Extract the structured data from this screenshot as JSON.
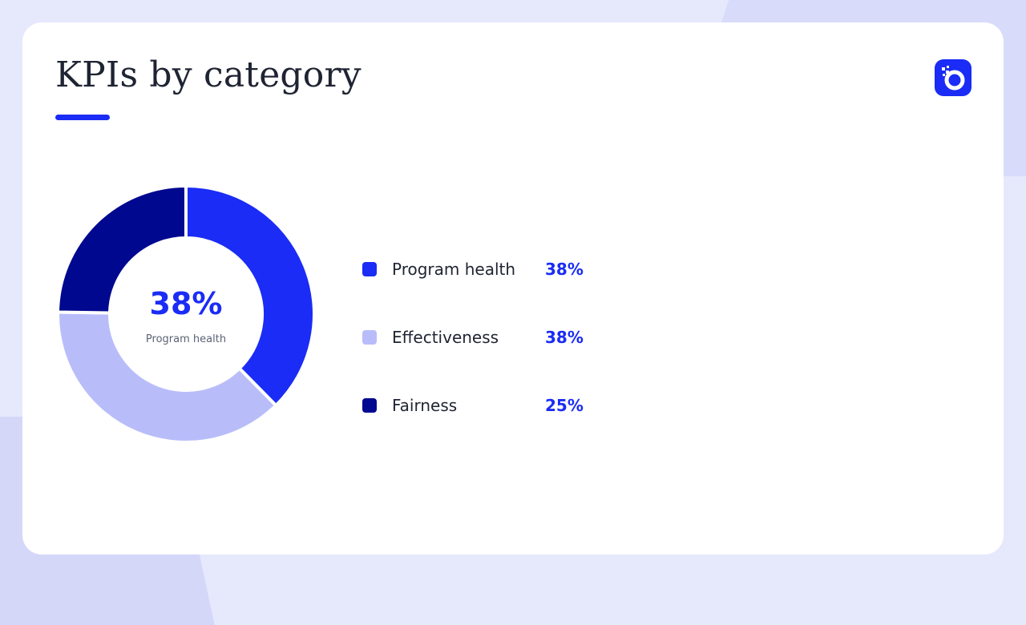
{
  "slide": {
    "title": "KPIs by category",
    "logo_icon": "brand-logo-icon"
  },
  "colors": {
    "accent": "#1a2cf5",
    "program_health": "#1a2cf5",
    "effectiveness": "#b8bdfa",
    "fairness": "#00088f"
  },
  "center": {
    "value": "38%",
    "label": "Program health"
  },
  "legend": [
    {
      "name": "Program health",
      "value": "38%"
    },
    {
      "name": "Effectiveness",
      "value": "38%"
    },
    {
      "name": "Fairness",
      "value": "25%"
    }
  ],
  "chart_data": {
    "type": "pie",
    "variant": "donut",
    "title": "KPIs by category",
    "categories": [
      "Program health",
      "Effectiveness",
      "Fairness"
    ],
    "values": [
      38,
      38,
      25
    ],
    "unit": "%",
    "colors": [
      "#1a2cf5",
      "#b8bdfa",
      "#00088f"
    ],
    "legend": "right",
    "center_label": {
      "value": "38%",
      "text": "Program health"
    }
  }
}
